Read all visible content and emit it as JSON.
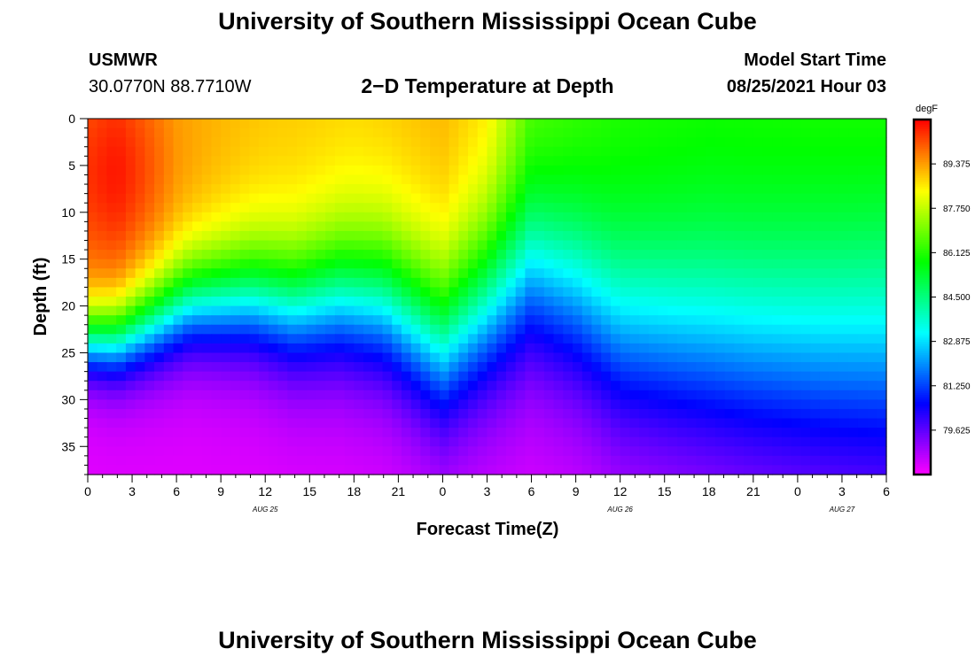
{
  "header": {
    "title_top": "University of Southern Mississippi Ocean Cube",
    "station_id": "USMWR",
    "station_coords": "30.0770N  88.7710W",
    "plot_title": "2−D Temperature at Depth",
    "model_start_label": "Model Start Time",
    "model_start_value": "08/25/2021 Hour 03"
  },
  "footer": {
    "title_bottom": "University of Southern Mississippi Ocean Cube"
  },
  "chart_data": {
    "type": "heatmap",
    "title": "2−D Temperature at Depth",
    "xlabel": "Forecast Time(Z)",
    "ylabel": "Depth (ft)",
    "x_hours_range": [
      0,
      54
    ],
    "ylim": [
      0,
      38
    ],
    "y_inverted": true,
    "x_tick_labels": [
      "0",
      "3",
      "6",
      "9",
      "12",
      "15",
      "18",
      "21",
      "0",
      "3",
      "6",
      "9",
      "12",
      "15",
      "18",
      "21",
      "0",
      "3",
      "6"
    ],
    "y_ticks": [
      0,
      5,
      10,
      15,
      20,
      25,
      30,
      35
    ],
    "date_labels": [
      {
        "text": "AUG 25",
        "hour": 12
      },
      {
        "text": "AUG 26",
        "hour": 36
      },
      {
        "text": "AUG 27",
        "hour": 51
      }
    ],
    "colorbar": {
      "unit": "degF",
      "min": 78.0,
      "max": 91.0,
      "tick_values": [
        79.625,
        81.25,
        82.875,
        84.5,
        86.125,
        87.75,
        89.375
      ],
      "tick_labels": [
        "79.625",
        "81.250",
        "82.875",
        "84.500",
        "86.125",
        "87.750",
        "89.375"
      ]
    },
    "surface_temp_profile": {
      "hours": [
        0,
        2,
        6,
        12,
        18,
        24,
        27,
        30,
        36,
        42,
        54
      ],
      "degF": [
        90.0,
        90.2,
        89.3,
        89.0,
        88.9,
        89.2,
        88.8,
        87.0,
        86.3,
        86.2,
        86.4
      ]
    },
    "thermocline_depth_profile_ft": {
      "hours": [
        0,
        2,
        4,
        7,
        11,
        14,
        17,
        20,
        24,
        27,
        30,
        33,
        36,
        40,
        45,
        50,
        54
      ],
      "depth": [
        23.5,
        23.5,
        22.0,
        19.5,
        19.0,
        20.0,
        19.0,
        19.5,
        24.0,
        20.0,
        16.5,
        19.0,
        23.0,
        24.0,
        25.0,
        25.5,
        25.5
      ]
    },
    "deep_water_degF": 78.3
  }
}
